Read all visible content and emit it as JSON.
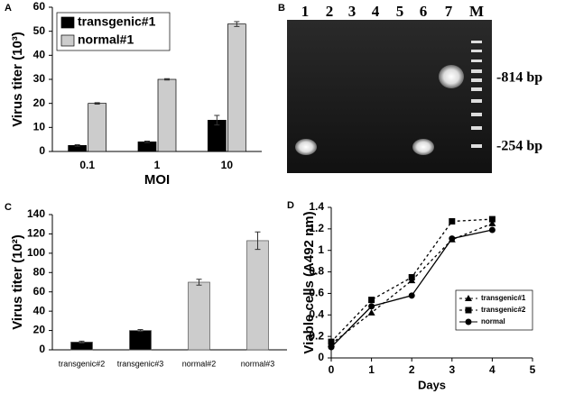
{
  "chart_data": [
    {
      "type": "bar",
      "panel_label": "A",
      "y_label": "Virus titer (10³)",
      "x_label": "MOI",
      "categories": [
        "0.1",
        "1",
        "10"
      ],
      "series": [
        {
          "name": "transgenic#1",
          "color": "#000000",
          "values": [
            2.5,
            4,
            13
          ],
          "errors": [
            0.3,
            0.3,
            2
          ]
        },
        {
          "name": "normal#1",
          "color": "#cccccc",
          "values": [
            20,
            30,
            53
          ],
          "errors": [
            0.3,
            0.3,
            1
          ]
        }
      ],
      "ylim": [
        0,
        60
      ],
      "yticks": [
        0,
        10,
        20,
        30,
        40,
        50,
        60
      ],
      "legend": "top-left"
    },
    {
      "type": "bar",
      "panel_label": "C",
      "y_label": "Virus titer (10²)",
      "categories": [
        "transgenic#2",
        "transgenic#3",
        "normal#2",
        "normal#3"
      ],
      "values": [
        8,
        20,
        70,
        113
      ],
      "errors": [
        1,
        1,
        3,
        9
      ],
      "colors": [
        "#000000",
        "#000000",
        "#cccccc",
        "#cccccc"
      ],
      "ylim": [
        0,
        140
      ],
      "yticks": [
        0,
        20,
        40,
        60,
        80,
        100,
        120,
        140
      ]
    },
    {
      "type": "line",
      "panel_label": "D",
      "y_label": "Viable cells (A492 nm)",
      "x_label": "Days",
      "x": [
        0,
        1,
        2,
        3,
        4
      ],
      "series": [
        {
          "name": "transgenic#1",
          "color": "#000000",
          "marker": "triangle",
          "dashed": true,
          "values": [
            0.13,
            0.42,
            0.72,
            1.1,
            1.25
          ]
        },
        {
          "name": "transgenic#2",
          "color": "#000000",
          "marker": "square",
          "dashed": true,
          "values": [
            0.15,
            0.54,
            0.75,
            1.27,
            1.29
          ]
        },
        {
          "name": "normal",
          "color": "#000000",
          "marker": "circle",
          "dashed": false,
          "values": [
            0.1,
            0.48,
            0.58,
            1.11,
            1.19
          ]
        }
      ],
      "xlim": [
        0,
        5
      ],
      "xticks": [
        0,
        1,
        2,
        3,
        4,
        5
      ],
      "ylim": [
        0,
        1.4
      ],
      "yticks": [
        0,
        0.2,
        0.4,
        0.6,
        0.8,
        1,
        1.2,
        1.4
      ],
      "legend": "bottom-right"
    }
  ],
  "gel": {
    "panel_label": "B",
    "lanes": [
      "1",
      "2",
      "3",
      "4",
      "5",
      "6",
      "7",
      "M"
    ],
    "markers": [
      "-814 bp",
      "-254 bp"
    ]
  }
}
